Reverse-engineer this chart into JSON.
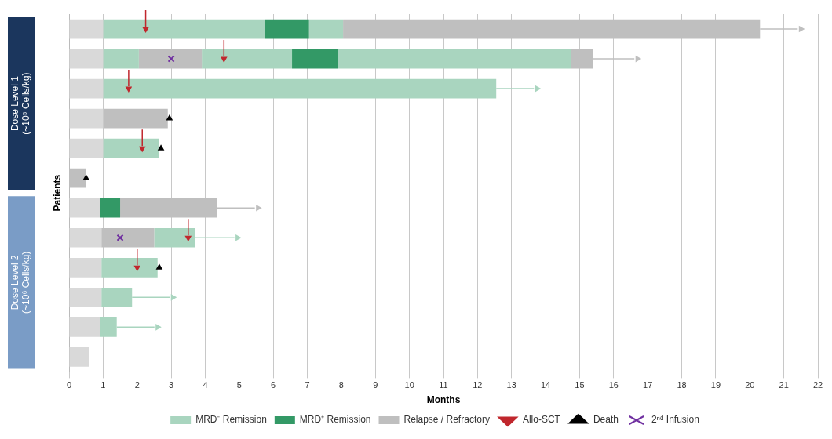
{
  "chart_data": {
    "type": "bar",
    "orientation": "horizontal",
    "stacked": true,
    "xlabel": "Months",
    "ylabel": "Patients",
    "categories": [
      null,
      null,
      null,
      null,
      null,
      null,
      null,
      null,
      null,
      null,
      null,
      null
    ],
    "annotations": [
      "Dose Level 1\n(~10⁵ Cells/kg)",
      "Dose Level 2\n(~10⁶ Cells/kg)"
    ],
    "series": [
      {
        "color": "#d9d9d9",
        "values": [
          1.0,
          1.0,
          1.0,
          1.0,
          1.0,
          null,
          0.9,
          0.95,
          0.95,
          0.95,
          0.9,
          0.6
        ]
      },
      {
        "name": "MRD⁻ Remission",
        "color": "#a9d5bf",
        "values": [
          4.75,
          1.05,
          11.55,
          null,
          1.65,
          null,
          null,
          null,
          1.65,
          0.9,
          0.5,
          null
        ]
      },
      {
        "name": "MRD⁺ Remission",
        "color": "#339966",
        "values": [
          1.3,
          null,
          null,
          null,
          null,
          null,
          0.6,
          null,
          null,
          null,
          null,
          null
        ]
      },
      {
        "color": "#a9d5bf",
        "values": [
          1.0,
          null,
          null,
          null,
          null,
          null,
          null,
          null,
          null,
          null,
          null,
          null
        ]
      },
      {
        "name": "Relapse / Refractory",
        "color": "#bfbfbf",
        "values": [
          12.25,
          1.85,
          null,
          1.9,
          null,
          0.5,
          2.85,
          1.55,
          null,
          null,
          null,
          null
        ]
      },
      {
        "color": "#a9d5bf",
        "values": [
          null,
          2.65,
          null,
          null,
          null,
          null,
          null,
          1.2,
          null,
          null,
          null,
          null
        ]
      },
      {
        "color": "#339966",
        "values": [
          null,
          1.35,
          null,
          null,
          null,
          null,
          null,
          null,
          null,
          null,
          null,
          null
        ]
      },
      {
        "color": "#a9d5bf",
        "values": [
          null,
          6.85,
          null,
          null,
          null,
          null,
          null,
          null,
          null,
          null,
          null,
          null
        ]
      },
      {
        "color": "#bfbfbf",
        "values": [
          null,
          0.65,
          null,
          null,
          null,
          null,
          null,
          null,
          null,
          null,
          null,
          null
        ]
      },
      {
        "type": "scatter",
        "marker": "triangle",
        "colors": [
          "#bfbfbf",
          "#bfbfbf",
          "#a9d5bf",
          null,
          null,
          null,
          "#bfbfbf",
          "#a9d5bf",
          null,
          "#a9d5bf",
          "#a9d5bf",
          null
        ],
        "values": [
          21.5,
          16.7,
          13.75,
          null,
          null,
          null,
          5.55,
          4.95,
          null,
          3.05,
          2.6,
          null
        ]
      },
      {
        "type": "scatter",
        "name": "Allo-SCT",
        "color": "#c0272d",
        "values": [
          2.25,
          4.55,
          1.75,
          null,
          2.15,
          null,
          null,
          3.5,
          2.0,
          null,
          null,
          null
        ]
      },
      {
        "type": "scatter",
        "marker": "triangle",
        "name": "Death",
        "color": "#000000",
        "values": [
          null,
          null,
          null,
          2.95,
          2.7,
          0.5,
          null,
          null,
          2.65,
          null,
          null,
          null
        ]
      },
      {
        "type": "scatter",
        "marker": "cross",
        "name": "2ⁿᵈ Infusion",
        "color": "#7030a0",
        "values": [
          null,
          3.0,
          null,
          null,
          null,
          null,
          null,
          1.5,
          null,
          null,
          null,
          null
        ]
      }
    ],
    "xlim": [
      0,
      22
    ],
    "xticks": [
      0,
      1,
      2,
      3,
      4,
      5,
      6,
      7,
      8,
      9,
      10,
      11,
      12,
      13,
      14,
      15,
      16,
      17,
      18,
      19,
      20,
      21,
      22
    ],
    "tick_labels": "x",
    "grid": "x",
    "legend": "bottom"
  }
}
